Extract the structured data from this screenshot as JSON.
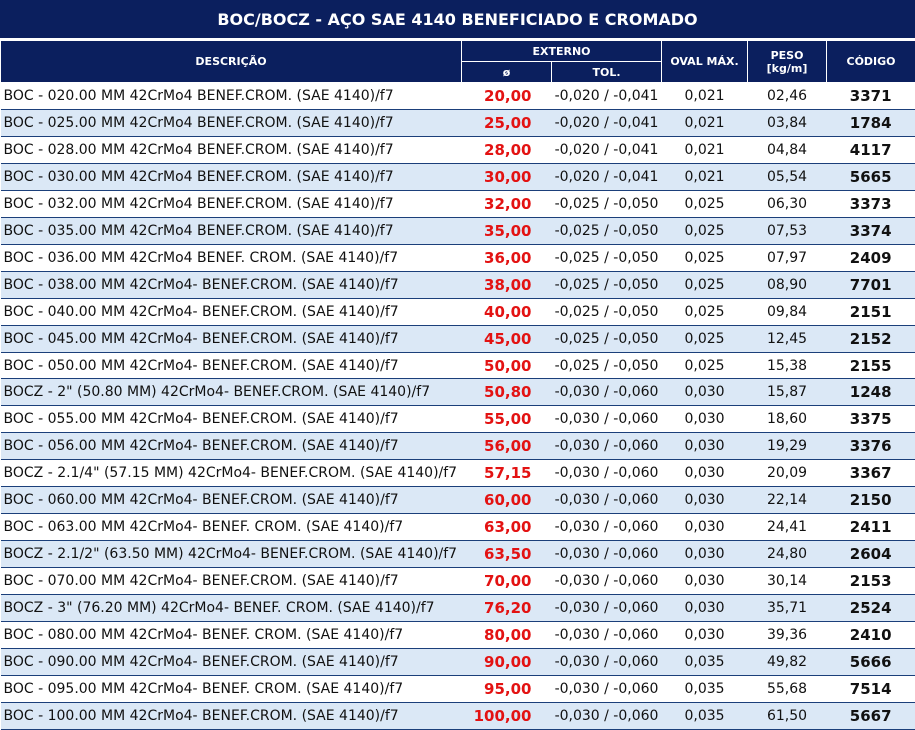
{
  "title": "BOC/BOCZ - AÇO SAE 4140 BENEFICIADO E CROMADO",
  "headers": {
    "descricao": "DESCRIÇÃO",
    "externo": "EXTERNO",
    "diam": "ø",
    "tol": "TOL.",
    "oval": "OVAL MÁX.",
    "peso": "PESO",
    "peso_unit": "[kg/m]",
    "codigo": "CÓDIGO"
  },
  "rows": [
    [
      "BOC - 020.00 MM 42CrMo4 BENEF.CROM. (SAE 4140)/f7",
      "20,00",
      "-0,020 / -0,041",
      "0,021",
      "02,46",
      "3371"
    ],
    [
      "BOC - 025.00 MM 42CrMo4 BENEF.CROM. (SAE 4140)/f7",
      "25,00",
      "-0,020 / -0,041",
      "0,021",
      "03,84",
      "1784"
    ],
    [
      "BOC - 028.00 MM 42CrMo4 BENEF.CROM. (SAE 4140)/f7",
      "28,00",
      "-0,020 / -0,041",
      "0,021",
      "04,84",
      "4117"
    ],
    [
      "BOC - 030.00 MM 42CrMo4 BENEF.CROM. (SAE 4140)/f7",
      "30,00",
      "-0,020 / -0,041",
      "0,021",
      "05,54",
      "5665"
    ],
    [
      "BOC - 032.00 MM 42CrMo4 BENEF.CROM. (SAE 4140)/f7",
      "32,00",
      "-0,025 / -0,050",
      "0,025",
      "06,30",
      "3373"
    ],
    [
      "BOC - 035.00 MM 42CrMo4 BENEF.CROM. (SAE 4140)/f7",
      "35,00",
      "-0,025 / -0,050",
      "0,025",
      "07,53",
      "3374"
    ],
    [
      "BOC - 036.00 MM 42CrMo4 BENEF. CROM. (SAE 4140)/f7",
      "36,00",
      "-0,025 / -0,050",
      "0,025",
      "07,97",
      "2409"
    ],
    [
      "BOC - 038.00 MM 42CrMo4- BENEF.CROM. (SAE 4140)/f7",
      "38,00",
      "-0,025 / -0,050",
      "0,025",
      "08,90",
      "7701"
    ],
    [
      "BOC - 040.00 MM 42CrMo4- BENEF.CROM. (SAE 4140)/f7",
      "40,00",
      "-0,025 / -0,050",
      "0,025",
      "09,84",
      "2151"
    ],
    [
      "BOC -  045.00 MM 42CrMo4- BENEF.CROM. (SAE 4140)/f7",
      "45,00",
      "-0,025 / -0,050",
      "0,025",
      "12,45",
      "2152"
    ],
    [
      "BOC -  050.00 MM 42CrMo4- BENEF.CROM. (SAE 4140)/f7",
      "50,00",
      "-0,025 / -0,050",
      "0,025",
      "15,38",
      "2155"
    ],
    [
      "BOCZ - 2\" (50.80 MM) 42CrMo4- BENEF.CROM. (SAE 4140)/f7",
      "50,80",
      "-0,030 / -0,060",
      "0,030",
      "15,87",
      "1248"
    ],
    [
      "BOC - 055.00 MM 42CrMo4- BENEF.CROM. (SAE 4140)/f7",
      "55,00",
      "-0,030 / -0,060",
      "0,030",
      "18,60",
      "3375"
    ],
    [
      "BOC - 056.00 MM 42CrMo4- BENEF.CROM. (SAE 4140)/f7",
      "56,00",
      "-0,030 / -0,060",
      "0,030",
      "19,29",
      "3376"
    ],
    [
      "BOCZ - 2.1/4\" (57.15 MM) 42CrMo4- BENEF.CROM. (SAE 4140)/f7",
      "57,15",
      "-0,030 / -0,060",
      "0,030",
      "20,09",
      "3367"
    ],
    [
      "BOC - 060.00 MM 42CrMo4- BENEF.CROM. (SAE 4140)/f7",
      "60,00",
      "-0,030 / -0,060",
      "0,030",
      "22,14",
      "2150"
    ],
    [
      "BOC - 063.00 MM 42CrMo4- BENEF. CROM. (SAE 4140)/f7",
      "63,00",
      "-0,030 / -0,060",
      "0,030",
      "24,41",
      "2411"
    ],
    [
      "BOCZ - 2.1/2\" (63.50 MM) 42CrMo4- BENEF.CROM. (SAE 4140)/f7",
      "63,50",
      "-0,030 / -0,060",
      "0,030",
      "24,80",
      "2604"
    ],
    [
      "BOC - 070.00 MM 42CrMo4- BENEF.CROM. (SAE 4140)/f7",
      "70,00",
      "-0,030 / -0,060",
      "0,030",
      "30,14",
      "2153"
    ],
    [
      "BOCZ - 3\" (76.20 MM) 42CrMo4- BENEF. CROM. (SAE 4140)/f7",
      "76,20",
      "-0,030 / -0,060",
      "0,030",
      "35,71",
      "2524"
    ],
    [
      "BOC - 080.00 MM 42CrMo4- BENEF. CROM. (SAE 4140)/f7",
      "80,00",
      "-0,030 / -0,060",
      "0,030",
      "39,36",
      "2410"
    ],
    [
      "BOC - 090.00 MM 42CrMo4- BENEF.CROM. (SAE 4140)/f7",
      "90,00",
      "-0,030 / -0,060",
      "0,035",
      "49,82",
      "5666"
    ],
    [
      "BOC - 095.00 MM 42CrMo4- BENEF. CROM. (SAE 4140)/f7",
      "95,00",
      "-0,030 / -0,060",
      "0,035",
      "55,68",
      "7514"
    ],
    [
      "BOC - 100.00 MM 42CrMo4- BENEF.CROM. (SAE 4140)/f7",
      "100,00",
      "-0,030 / -0,060",
      "0,035",
      "61,50",
      "5667"
    ]
  ]
}
